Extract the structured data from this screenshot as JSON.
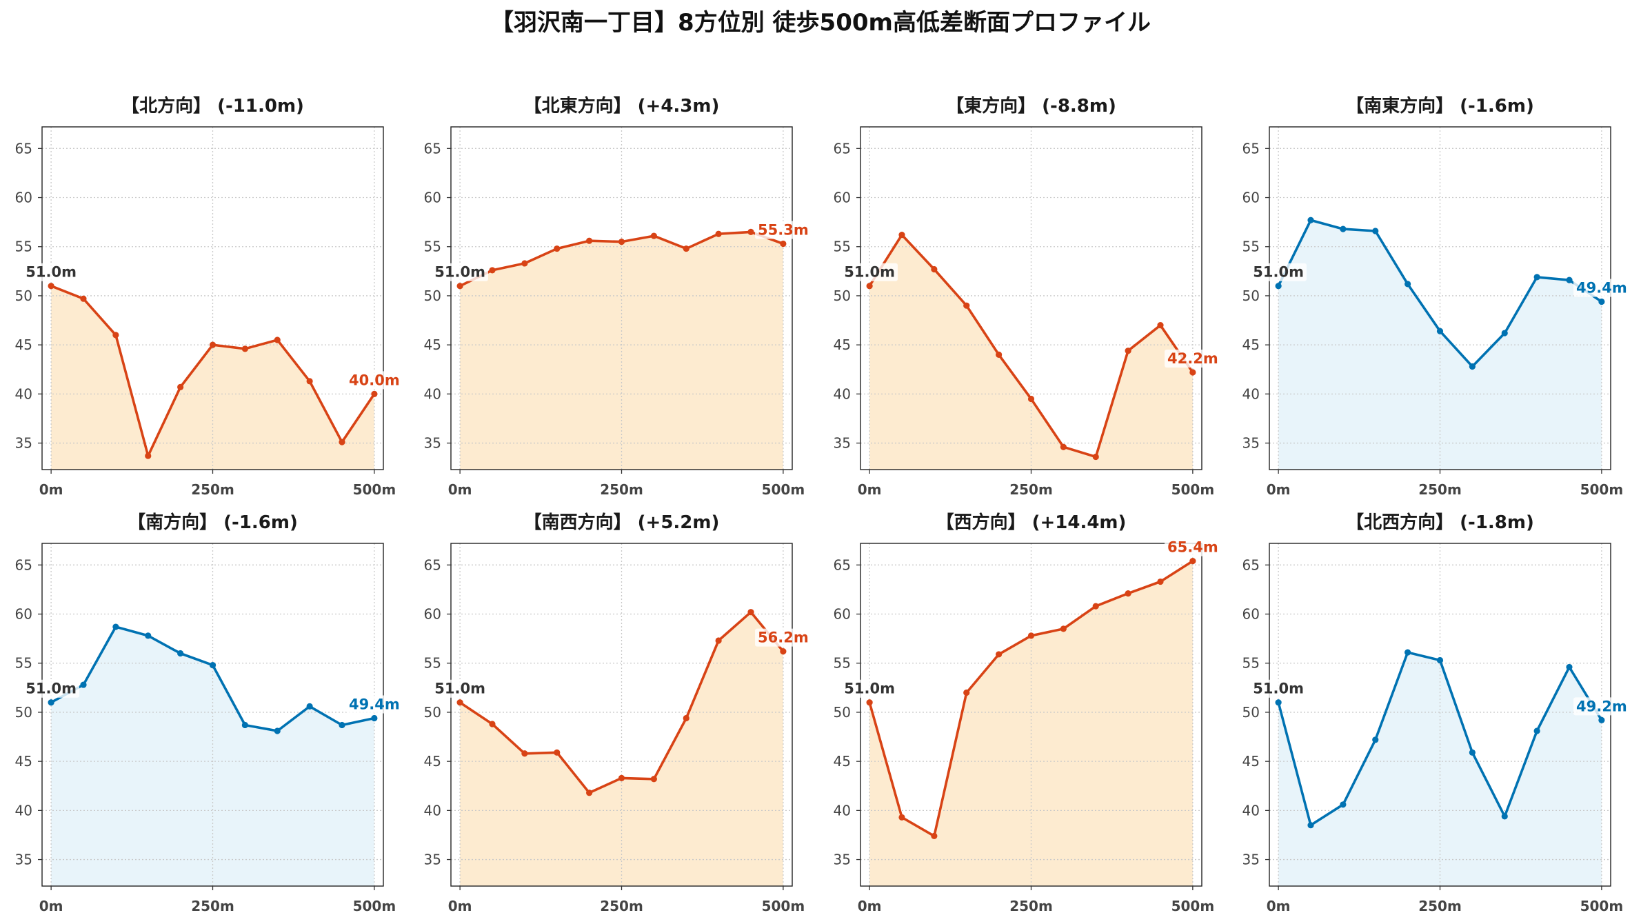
{
  "figure_title": "【羽沢南一丁目】8方位別 徒歩500m高低差断面プロファイル",
  "chart_data": [
    {
      "type": "line",
      "title": "【北方向】 (-11.0m)",
      "x": [
        0,
        50,
        100,
        150,
        200,
        250,
        300,
        350,
        400,
        450,
        500
      ],
      "y": [
        51.0,
        49.7,
        46.0,
        33.7,
        40.7,
        45.0,
        44.6,
        45.5,
        41.3,
        35.1,
        40.0
      ],
      "start_label": "51.0m",
      "end_label": "40.0m",
      "color": "#d84315",
      "fill_color": "#fdebd0",
      "start_label_color": "#333333",
      "xticks": [
        0,
        250,
        500
      ],
      "xtick_labels": [
        "0m",
        "250m",
        "500m"
      ],
      "yticks": [
        35,
        40,
        45,
        50,
        55,
        60,
        65
      ],
      "xlim": [
        -14,
        514
      ],
      "ylim": [
        32.3,
        67.2
      ],
      "grid": true
    },
    {
      "type": "line",
      "title": "【北東方向】 (+4.3m)",
      "x": [
        0,
        50,
        100,
        150,
        200,
        250,
        300,
        350,
        400,
        450,
        500
      ],
      "y": [
        51.0,
        52.6,
        53.3,
        54.8,
        55.6,
        55.5,
        56.1,
        54.8,
        56.3,
        56.5,
        55.3
      ],
      "start_label": "51.0m",
      "end_label": "55.3m",
      "color": "#d84315",
      "fill_color": "#fdebd0",
      "start_label_color": "#333333",
      "xticks": [
        0,
        250,
        500
      ],
      "xtick_labels": [
        "0m",
        "250m",
        "500m"
      ],
      "yticks": [
        35,
        40,
        45,
        50,
        55,
        60,
        65
      ],
      "xlim": [
        -14,
        514
      ],
      "ylim": [
        32.3,
        67.2
      ],
      "grid": true
    },
    {
      "type": "line",
      "title": "【東方向】 (-8.8m)",
      "x": [
        0,
        50,
        100,
        150,
        200,
        250,
        300,
        350,
        400,
        450,
        500
      ],
      "y": [
        51.0,
        56.2,
        52.7,
        49.0,
        44.0,
        39.5,
        34.6,
        33.6,
        44.4,
        47.0,
        42.2
      ],
      "start_label": "51.0m",
      "end_label": "42.2m",
      "color": "#d84315",
      "fill_color": "#fdebd0",
      "start_label_color": "#333333",
      "xticks": [
        0,
        250,
        500
      ],
      "xtick_labels": [
        "0m",
        "250m",
        "500m"
      ],
      "yticks": [
        35,
        40,
        45,
        50,
        55,
        60,
        65
      ],
      "xlim": [
        -14,
        514
      ],
      "ylim": [
        32.3,
        67.2
      ],
      "grid": true
    },
    {
      "type": "line",
      "title": "【南東方向】 (-1.6m)",
      "x": [
        0,
        50,
        100,
        150,
        200,
        250,
        300,
        350,
        400,
        450,
        500
      ],
      "y": [
        51.0,
        57.7,
        56.8,
        56.6,
        51.2,
        46.4,
        42.8,
        46.2,
        51.9,
        51.6,
        49.4
      ],
      "start_label": "51.0m",
      "end_label": "49.4m",
      "color": "#0072b2",
      "fill_color": "#e8f4fa",
      "start_label_color": "#333333",
      "xticks": [
        0,
        250,
        500
      ],
      "xtick_labels": [
        "0m",
        "250m",
        "500m"
      ],
      "yticks": [
        35,
        40,
        45,
        50,
        55,
        60,
        65
      ],
      "xlim": [
        -14,
        514
      ],
      "ylim": [
        32.3,
        67.2
      ],
      "grid": true
    },
    {
      "type": "line",
      "title": "【南方向】 (-1.6m)",
      "x": [
        0,
        50,
        100,
        150,
        200,
        250,
        300,
        350,
        400,
        450,
        500
      ],
      "y": [
        51.0,
        52.8,
        58.7,
        57.8,
        56.0,
        54.8,
        48.7,
        48.1,
        50.6,
        48.7,
        49.4
      ],
      "start_label": "51.0m",
      "end_label": "49.4m",
      "color": "#0072b2",
      "fill_color": "#e8f4fa",
      "start_label_color": "#333333",
      "xticks": [
        0,
        250,
        500
      ],
      "xtick_labels": [
        "0m",
        "250m",
        "500m"
      ],
      "yticks": [
        35,
        40,
        45,
        50,
        55,
        60,
        65
      ],
      "xlim": [
        -14,
        514
      ],
      "ylim": [
        32.3,
        67.2
      ],
      "grid": true
    },
    {
      "type": "line",
      "title": "【南西方向】 (+5.2m)",
      "x": [
        0,
        50,
        100,
        150,
        200,
        250,
        300,
        350,
        400,
        450,
        500
      ],
      "y": [
        51.0,
        48.8,
        45.8,
        45.9,
        41.8,
        43.3,
        43.2,
        49.4,
        57.3,
        60.2,
        56.2
      ],
      "start_label": "51.0m",
      "end_label": "56.2m",
      "color": "#d84315",
      "fill_color": "#fdebd0",
      "start_label_color": "#333333",
      "xticks": [
        0,
        250,
        500
      ],
      "xtick_labels": [
        "0m",
        "250m",
        "500m"
      ],
      "yticks": [
        35,
        40,
        45,
        50,
        55,
        60,
        65
      ],
      "xlim": [
        -14,
        514
      ],
      "ylim": [
        32.3,
        67.2
      ],
      "grid": true
    },
    {
      "type": "line",
      "title": "【西方向】 (+14.4m)",
      "x": [
        0,
        50,
        100,
        150,
        200,
        250,
        300,
        350,
        400,
        450,
        500
      ],
      "y": [
        51.0,
        39.3,
        37.4,
        52.0,
        55.9,
        57.8,
        58.5,
        60.8,
        62.1,
        63.3,
        65.4
      ],
      "start_label": "51.0m",
      "end_label": "65.4m",
      "color": "#d84315",
      "fill_color": "#fdebd0",
      "start_label_color": "#333333",
      "xticks": [
        0,
        250,
        500
      ],
      "xtick_labels": [
        "0m",
        "250m",
        "500m"
      ],
      "yticks": [
        35,
        40,
        45,
        50,
        55,
        60,
        65
      ],
      "xlim": [
        -14,
        514
      ],
      "ylim": [
        32.3,
        67.2
      ],
      "grid": true
    },
    {
      "type": "line",
      "title": "【北西方向】 (-1.8m)",
      "x": [
        0,
        50,
        100,
        150,
        200,
        250,
        300,
        350,
        400,
        450,
        500
      ],
      "y": [
        51.0,
        38.5,
        40.6,
        47.2,
        56.1,
        55.3,
        45.9,
        39.4,
        48.1,
        54.6,
        49.2
      ],
      "start_label": "51.0m",
      "end_label": "49.2m",
      "color": "#0072b2",
      "fill_color": "#e8f4fa",
      "start_label_color": "#333333",
      "xticks": [
        0,
        250,
        500
      ],
      "xtick_labels": [
        "0m",
        "250m",
        "500m"
      ],
      "yticks": [
        35,
        40,
        45,
        50,
        55,
        60,
        65
      ],
      "xlim": [
        -14,
        514
      ],
      "ylim": [
        32.3,
        67.2
      ],
      "grid": true
    }
  ]
}
